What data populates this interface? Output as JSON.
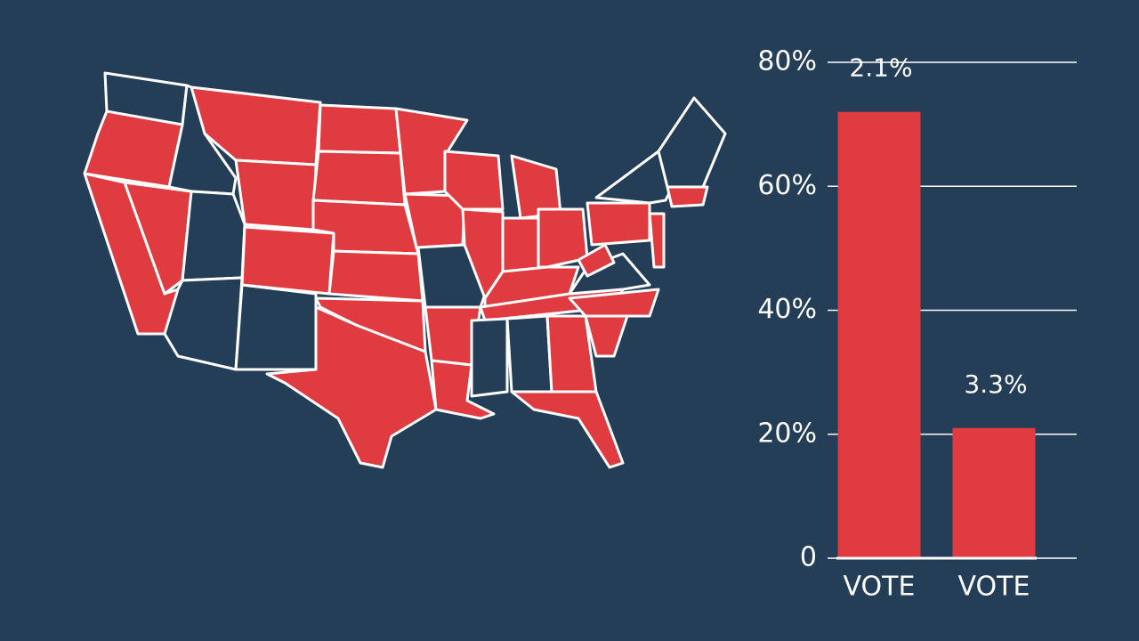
{
  "chart_data": {
    "type": "bar",
    "categories": [
      "VOTE",
      "VOTE"
    ],
    "values": [
      72,
      21
    ],
    "color": "#e03b41",
    "annotations": [
      "2.1%",
      "3.3%"
    ],
    "ylim": [
      0,
      80
    ],
    "yticks": [
      0,
      {
        "value": 20,
        "label": "20%"
      },
      {
        "value": 40,
        "label": "40%"
      },
      {
        "value": 60,
        "label": "60%"
      },
      {
        "value": 80,
        "label": "80%"
      }
    ],
    "grid": true
  }
}
